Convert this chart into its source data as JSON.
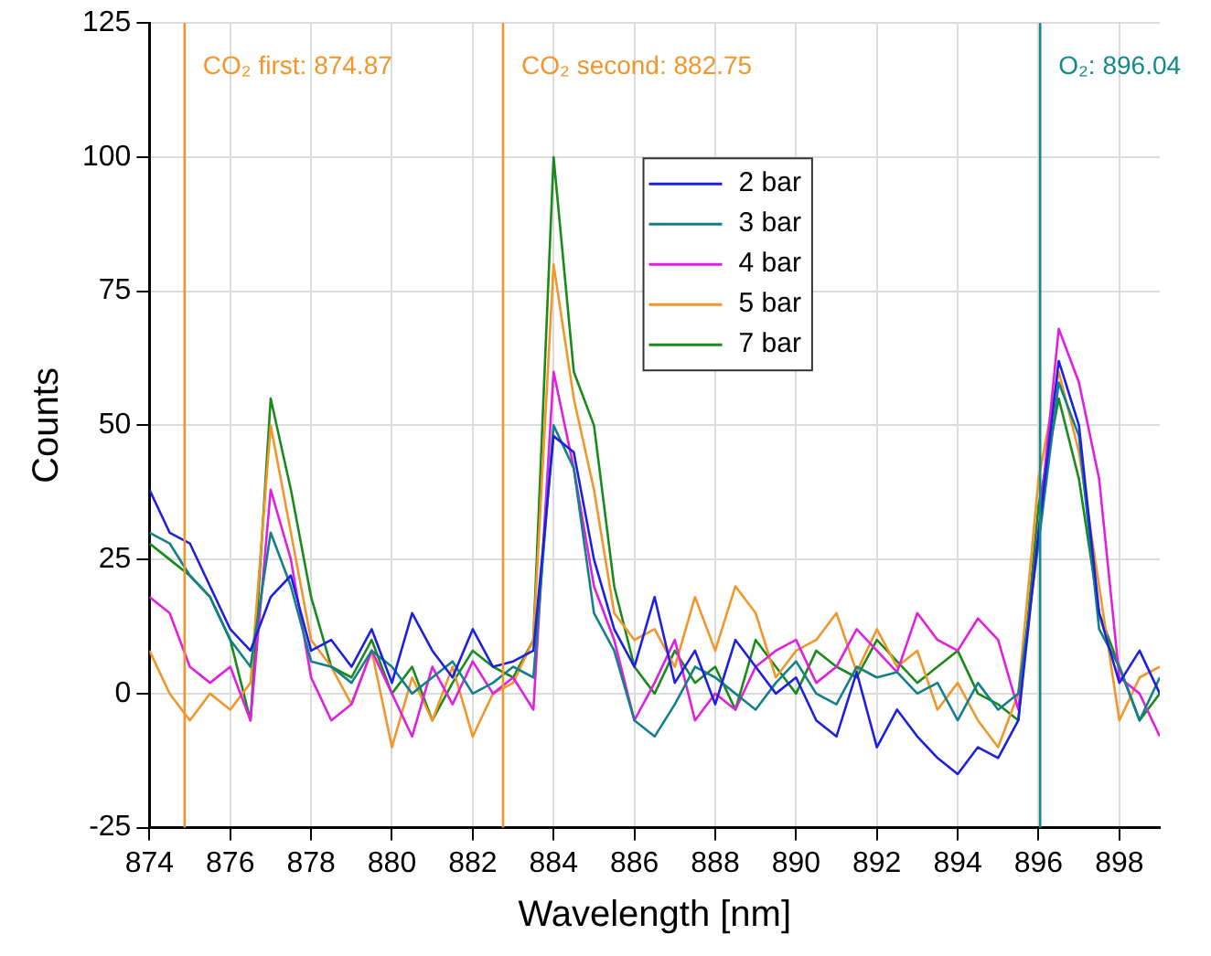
{
  "chart_data": {
    "type": "line",
    "xlabel": "Wavelength [nm]",
    "ylabel": "Counts",
    "x": [
      874,
      874.5,
      875,
      875.5,
      876,
      876.5,
      877,
      877.5,
      878,
      878.5,
      879,
      879.5,
      880,
      880.5,
      881,
      881.5,
      882,
      882.5,
      883,
      883.5,
      884,
      884.5,
      885,
      885.5,
      886,
      886.5,
      887,
      887.5,
      888,
      888.5,
      889,
      889.5,
      890,
      890.5,
      891,
      891.5,
      892,
      892.5,
      893,
      893.5,
      894,
      894.5,
      895,
      895.5,
      896,
      896.5,
      897,
      897.5,
      898,
      898.5,
      899
    ],
    "xlim": [
      874,
      899
    ],
    "xticks": [
      874,
      876,
      878,
      880,
      882,
      884,
      886,
      888,
      890,
      892,
      894,
      896,
      898
    ],
    "ylim": [
      -25,
      125
    ],
    "yticks": [
      -25,
      0,
      25,
      50,
      75,
      100,
      125
    ],
    "grid": true,
    "legend": "top",
    "marker": "none",
    "line_style": "solid",
    "series": [
      {
        "name": "2 bar",
        "color": "#1f1fe0",
        "values": [
          38,
          30,
          28,
          20,
          12,
          8,
          18,
          22,
          8,
          10,
          5,
          12,
          2,
          15,
          8,
          3,
          12,
          5,
          6,
          8,
          48,
          45,
          25,
          12,
          5,
          18,
          2,
          8,
          -2,
          10,
          5,
          0,
          3,
          -5,
          -8,
          4,
          -10,
          -3,
          -8,
          -12,
          -15,
          -10,
          -12,
          -5,
          30,
          62,
          50,
          15,
          2,
          8,
          0
        ]
      },
      {
        "name": "3 bar",
        "color": "#12808a",
        "values": [
          30,
          28,
          22,
          18,
          10,
          5,
          30,
          20,
          6,
          5,
          2,
          8,
          5,
          0,
          3,
          6,
          0,
          2,
          5,
          3,
          50,
          42,
          15,
          8,
          -5,
          -8,
          -2,
          5,
          3,
          0,
          -3,
          2,
          6,
          0,
          -2,
          5,
          3,
          4,
          0,
          2,
          -5,
          2,
          -3,
          0,
          28,
          58,
          48,
          12,
          5,
          -5,
          3
        ]
      },
      {
        "name": "4 bar",
        "color": "#e020e0",
        "values": [
          18,
          15,
          5,
          2,
          5,
          -5,
          38,
          25,
          3,
          -5,
          -2,
          8,
          0,
          -8,
          5,
          -2,
          6,
          0,
          3,
          -3,
          60,
          42,
          20,
          10,
          -5,
          2,
          10,
          -5,
          0,
          -3,
          5,
          8,
          10,
          2,
          5,
          12,
          8,
          4,
          15,
          10,
          8,
          14,
          10,
          -3,
          30,
          68,
          58,
          40,
          3,
          0,
          -8
        ]
      },
      {
        "name": "5 bar",
        "color": "#f0962a",
        "values": [
          8,
          0,
          -5,
          0,
          -3,
          2,
          50,
          30,
          10,
          5,
          -2,
          8,
          -10,
          3,
          -5,
          5,
          -8,
          0,
          2,
          10,
          80,
          55,
          38,
          15,
          10,
          12,
          5,
          18,
          8,
          20,
          15,
          3,
          8,
          10,
          15,
          4,
          12,
          5,
          8,
          -3,
          2,
          -5,
          -10,
          0,
          40,
          60,
          45,
          20,
          -5,
          3,
          5
        ]
      },
      {
        "name": "7 bar",
        "color": "#1a8a1a",
        "values": [
          28,
          25,
          22,
          18,
          10,
          -5,
          55,
          38,
          18,
          5,
          3,
          10,
          0,
          5,
          -5,
          2,
          8,
          5,
          3,
          10,
          100,
          60,
          50,
          20,
          5,
          0,
          8,
          2,
          5,
          -3,
          10,
          5,
          0,
          8,
          5,
          3,
          10,
          6,
          2,
          5,
          8,
          0,
          -2,
          -5,
          35,
          55,
          40,
          15,
          5,
          -5,
          0
        ]
      }
    ],
    "ref_lines": [
      {
        "axis": "x",
        "value": 874.87,
        "label": "CO₂ first: 874.87",
        "color": "#f0962a"
      },
      {
        "axis": "x",
        "value": 882.75,
        "label": "CO₂ second: 882.75",
        "color": "#f0962a"
      },
      {
        "axis": "x",
        "value": 896.04,
        "label": "O₂: 896.04",
        "color": "#138a8a"
      }
    ]
  }
}
